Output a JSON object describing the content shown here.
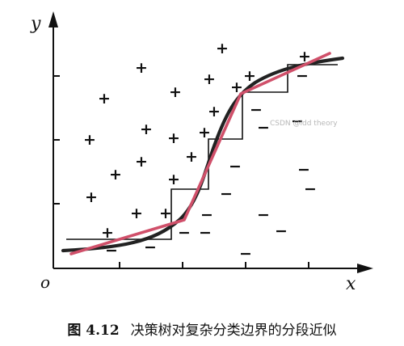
{
  "figure": {
    "x_axis_label": "x",
    "y_axis_label": "y",
    "origin_label": "o",
    "caption_number": "图 4.12",
    "caption_text": "决策树对复杂分类边界的分段近似",
    "watermark": "CSDN @ldd theory",
    "colors": {
      "axis": "#111111",
      "true_boundary": "#222222",
      "approximation": "#d0506a",
      "tree_steps": "#111111"
    }
  }
}
